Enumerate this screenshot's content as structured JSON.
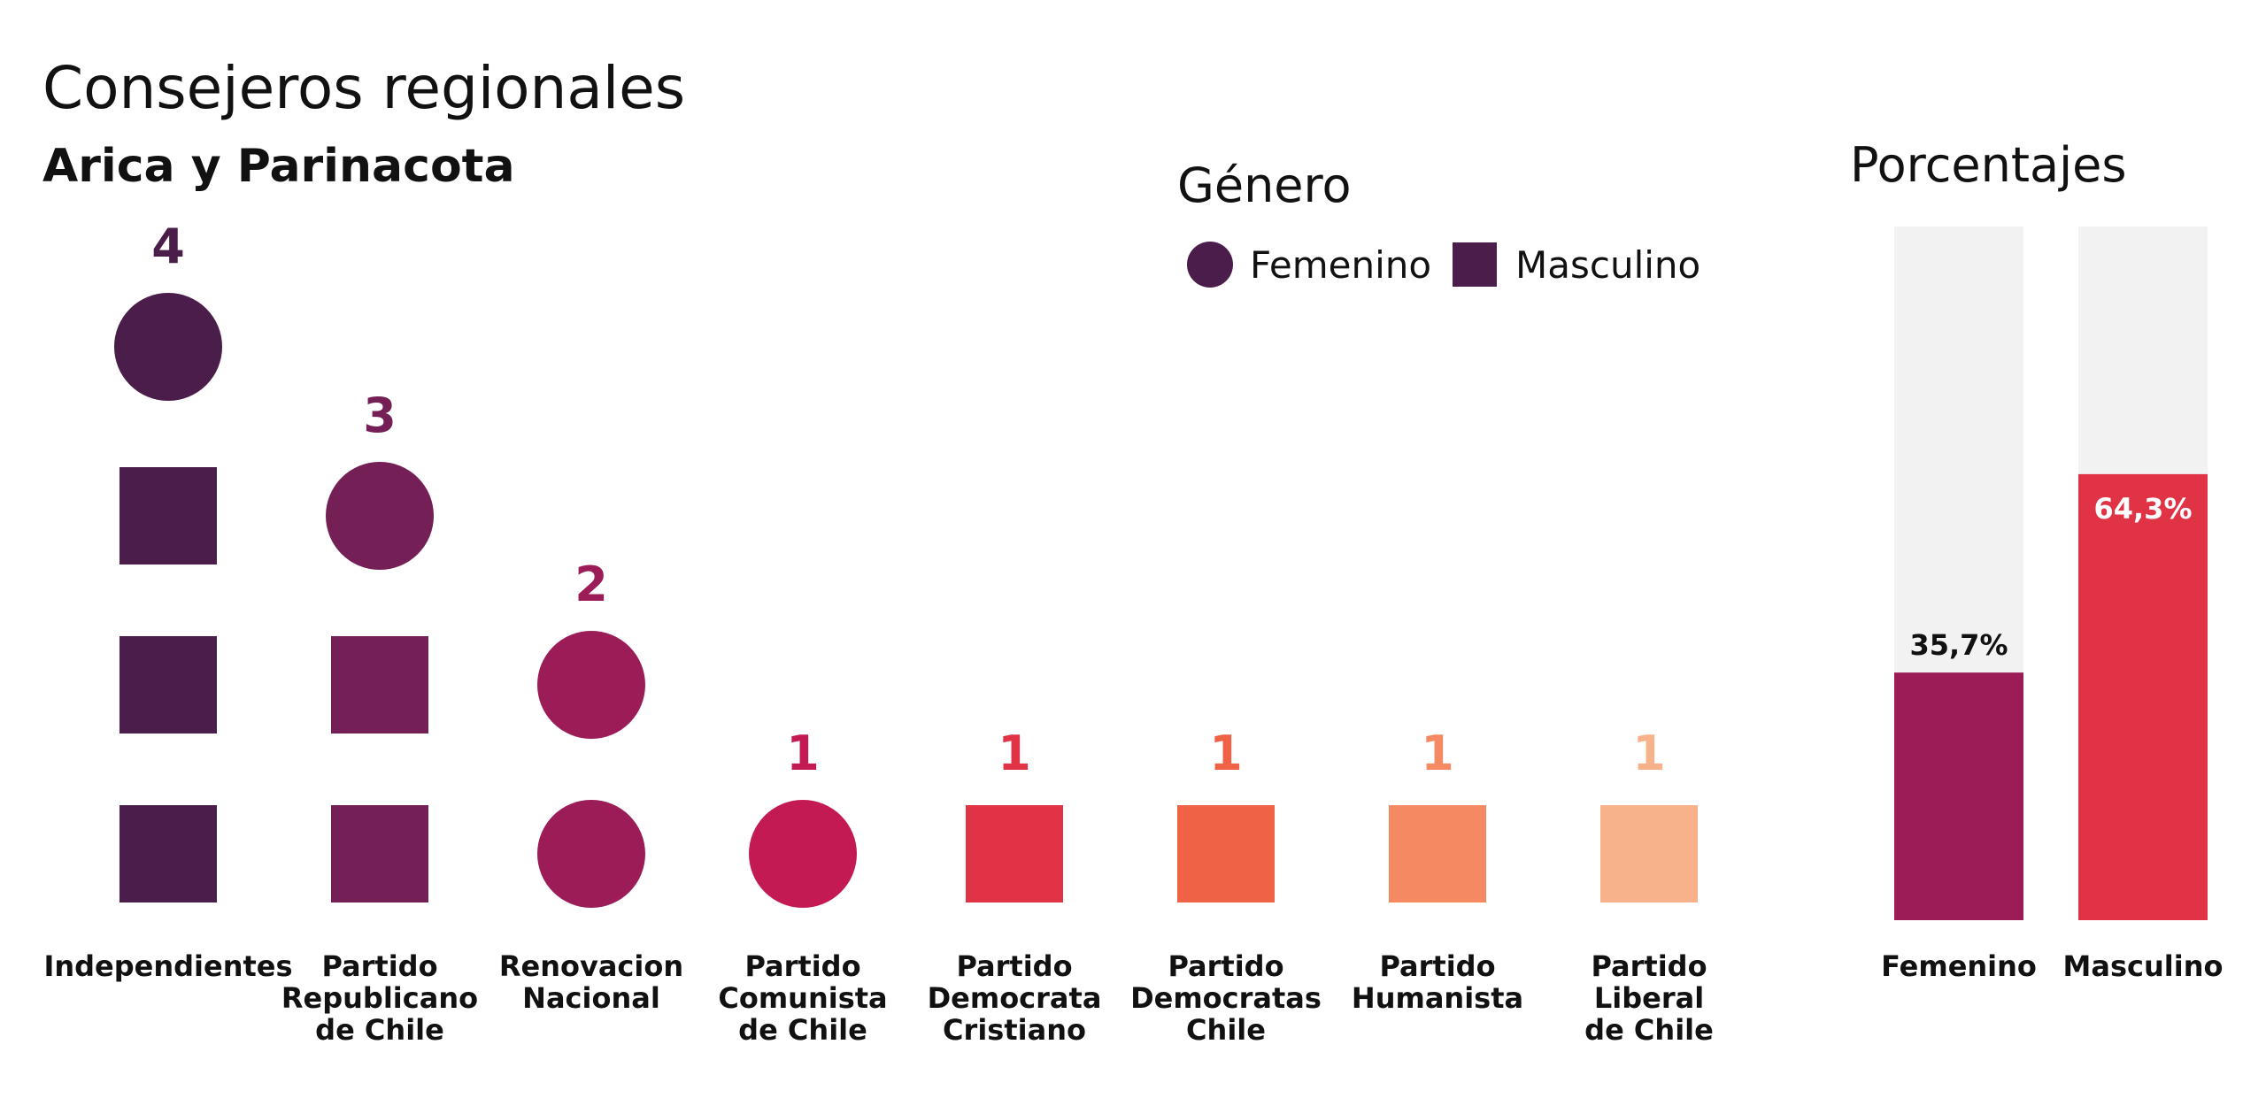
{
  "chart_data": [
    {
      "type": "bar",
      "title": "Consejeros regionales",
      "subtitle": "Arica y Parinacota",
      "legend": {
        "title": "Género",
        "placement": "top-right",
        "items": [
          {
            "label": "Femenino",
            "shape": "circle"
          },
          {
            "label": "Masculino",
            "shape": "square"
          }
        ]
      },
      "categories": [
        {
          "lines": [
            "Independientes"
          ],
          "color": "#4b1d4a",
          "total": 4,
          "femenino": 1,
          "masculino": 3
        },
        {
          "lines": [
            "Partido",
            "Republicano",
            "de Chile"
          ],
          "color": "#741f55",
          "total": 3,
          "femenino": 1,
          "masculino": 2
        },
        {
          "lines": [
            "Renovacion",
            "Nacional"
          ],
          "color": "#9c1c58",
          "total": 2,
          "femenino": 2,
          "masculino": 0
        },
        {
          "lines": [
            "Partido",
            "Comunista",
            "de Chile"
          ],
          "color": "#c41a54",
          "total": 1,
          "femenino": 1,
          "masculino": 0
        },
        {
          "lines": [
            "Partido",
            "Democrata",
            "Cristiano"
          ],
          "color": "#e03345",
          "total": 1,
          "femenino": 0,
          "masculino": 1
        },
        {
          "lines": [
            "Partido",
            "Democratas",
            "Chile"
          ],
          "color": "#f06245",
          "total": 1,
          "femenino": 0,
          "masculino": 1
        },
        {
          "lines": [
            "Partido",
            "Humanista"
          ],
          "color": "#f58a62",
          "total": 1,
          "femenino": 0,
          "masculino": 1
        },
        {
          "lines": [
            "Partido",
            "Liberal",
            "de Chile"
          ],
          "color": "#f7b28c",
          "total": 1,
          "femenino": 0,
          "masculino": 1
        }
      ]
    },
    {
      "type": "bar",
      "title": "Porcentajes",
      "ylim": [
        0,
        100
      ],
      "background_color": "#f2f2f2",
      "categories": [
        "Femenino",
        "Masculino"
      ],
      "values": [
        35.7,
        64.3
      ],
      "value_labels": [
        "35,7%",
        "64,3%"
      ],
      "colors": [
        "#9c1c58",
        "#e03345"
      ]
    }
  ]
}
